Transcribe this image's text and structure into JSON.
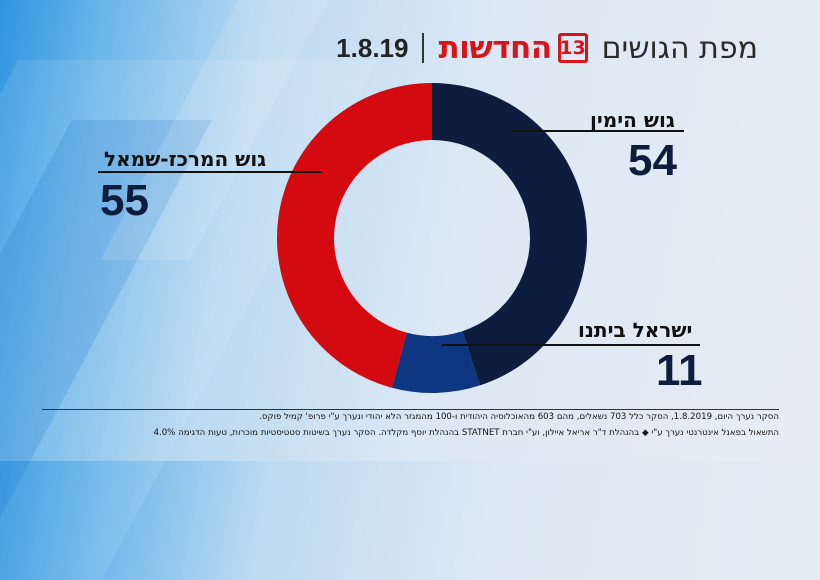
{
  "header": {
    "title": "מפת הגושים",
    "logo_word": "החדשות",
    "logo_number": "13",
    "date": "1.8.19"
  },
  "colors": {
    "right_bloc": "#0e1d3d",
    "yisrael_beytenu": "#0f3680",
    "center_left_bloc": "#d30a10"
  },
  "chart_data": {
    "type": "pie",
    "style": "donut",
    "total_seats": 120,
    "slices": [
      {
        "label": "גוש הימין",
        "value": 54,
        "color": "#0e1d3d"
      },
      {
        "label": "ישראל ביתנו",
        "value": 11,
        "color": "#0f3680"
      },
      {
        "label": "גוש המרכז-שמאל",
        "value": 55,
        "color": "#d30a10"
      }
    ]
  },
  "labels": {
    "right": {
      "name": "גוש הימין",
      "value": "54"
    },
    "yb": {
      "name": "ישראל ביתנו",
      "value": "11"
    },
    "left": {
      "name": "גוש המרכז-שמאל",
      "value": "55"
    }
  },
  "footer": {
    "line1": "הסקר נערך היום, 1.8.2019, הסקר כלל 703 נשאלים, מהם 603 מהאוכלוסיה היהודית ו-100 מהמגזר הלא יהודי ונערך ע\"י פרופ' קמיל פוקס.",
    "line2": "התשאול בפאנל אינטרנטי נערך ע\"י ◆ בהנהלת ד\"ר אריאל איילון, וע\"י חברת STATNET בהנהלת יוסף מקלדה. הסקר נערך בשיטות סטטיסטיות מוכרות, טעות הדגימה 4.0%"
  }
}
